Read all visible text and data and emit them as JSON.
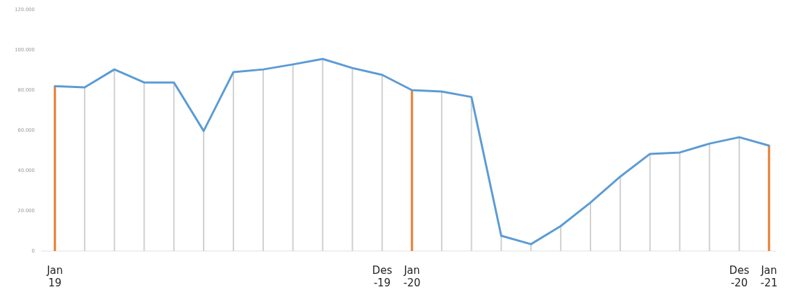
{
  "chart_data": {
    "type": "line",
    "categories": [
      "Jan 19",
      null,
      null,
      null,
      null,
      null,
      null,
      null,
      null,
      null,
      null,
      "Des -19",
      "Jan -20",
      null,
      null,
      null,
      null,
      null,
      null,
      null,
      null,
      null,
      null,
      "Des -20",
      "Jan -21"
    ],
    "series": [
      {
        "type": "bar",
        "color": "#d0d0d0",
        "colors": [
          "#e8792a",
          "#d0d0d0",
          "#d0d0d0",
          "#d0d0d0",
          "#d0d0d0",
          "#d0d0d0",
          "#d0d0d0",
          "#d0d0d0",
          "#d0d0d0",
          "#d0d0d0",
          "#d0d0d0",
          "#d0d0d0",
          "#e8792a",
          "#d0d0d0",
          "#d0d0d0",
          "#d0d0d0",
          "#d0d0d0",
          "#d0d0d0",
          "#d0d0d0",
          "#d0d0d0",
          "#d0d0d0",
          "#d0d0d0",
          "#d0d0d0",
          "#d0d0d0",
          "#e8792a"
        ],
        "values": [
          82000,
          81400,
          90300,
          83800,
          83800,
          59700,
          89000,
          90300,
          92800,
          95500,
          91000,
          87600,
          80000,
          79300,
          76600,
          7600,
          3400,
          12400,
          24100,
          37000,
          48300,
          49000,
          53400,
          56600,
          52400
        ]
      },
      {
        "color": "#5b9bd5",
        "values": [
          82000,
          81400,
          90300,
          83800,
          83800,
          59700,
          89000,
          90300,
          92800,
          95500,
          91000,
          87600,
          80000,
          79300,
          76600,
          7600,
          3400,
          12400,
          24100,
          37000,
          48300,
          49000,
          53400,
          56600,
          52400
        ]
      }
    ],
    "ylim": [
      0,
      120000
    ],
    "yticks": [
      0,
      {
        "value": 20000,
        "label": "20.000"
      },
      {
        "value": 40000,
        "label": "40.000"
      },
      {
        "value": 60000,
        "label": "60.000"
      },
      {
        "value": 80000,
        "label": "80.000"
      },
      {
        "value": 100000,
        "label": "100.000"
      },
      {
        "value": 120000,
        "label": "120.000"
      }
    ],
    "marker": "none",
    "line_style": "solid"
  }
}
